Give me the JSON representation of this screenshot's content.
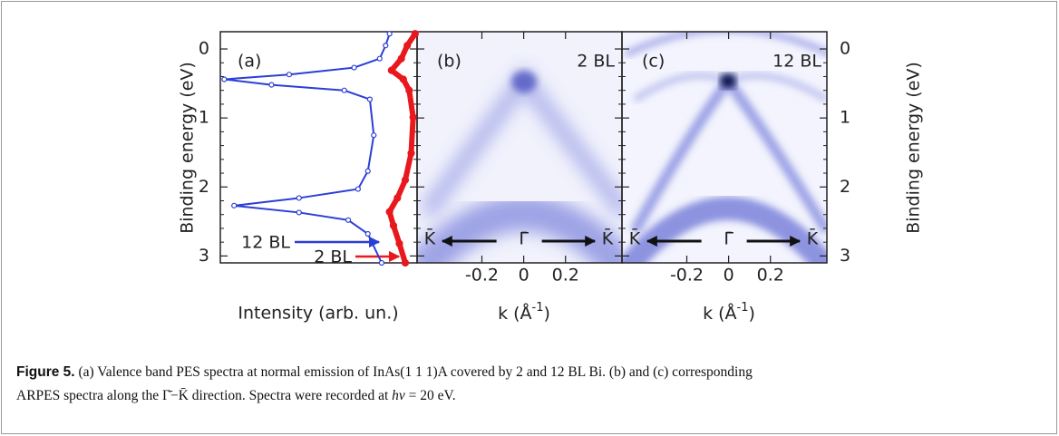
{
  "figure": {
    "y_label": "Binding energy (eV)",
    "ylim": [
      -0.25,
      3.1
    ],
    "yticks": [
      0,
      1,
      2,
      3
    ],
    "panel_a": {
      "label": "(a)",
      "x_label": "Intensity (arb. un.)",
      "series": [
        {
          "name": "12 BL",
          "color": "#2b3fd6",
          "energy": [
            -0.22,
            -0.05,
            0.14,
            0.27,
            0.37,
            0.44,
            0.52,
            0.6,
            0.73,
            1.25,
            1.77,
            2.03,
            2.16,
            2.27,
            2.37,
            2.48,
            2.68,
            3.1
          ],
          "intensity": [
            0.86,
            0.84,
            0.81,
            0.68,
            0.35,
            0.02,
            0.26,
            0.63,
            0.76,
            0.78,
            0.75,
            0.7,
            0.4,
            0.07,
            0.4,
            0.65,
            0.75,
            0.82
          ]
        },
        {
          "name": "2 BL",
          "color": "#e8181c",
          "energy": [
            -0.22,
            -0.05,
            0.14,
            0.31,
            0.44,
            0.6,
            0.99,
            1.51,
            1.9,
            2.16,
            2.36,
            2.56,
            2.82,
            3.1
          ],
          "intensity": [
            0.99,
            0.95,
            0.92,
            0.87,
            0.93,
            0.96,
            0.98,
            0.97,
            0.94,
            0.9,
            0.86,
            0.88,
            0.91,
            0.94
          ]
        }
      ]
    },
    "k_label": "k (Å",
    "k_label_sup": "-1",
    "k_label_end": ")",
    "klim": [
      -0.51,
      0.47
    ],
    "kticks": [
      -0.2,
      0,
      0.2
    ],
    "panel_b": {
      "label": "(b)",
      "thickness": "2 BL"
    },
    "panel_c": {
      "label": "(c)",
      "thickness": "12 BL"
    },
    "direction_labels": [
      "K̄",
      "Γ̄",
      "K̄"
    ]
  },
  "caption": {
    "label": "Figure 5.",
    "text_1": " (a) Valence band PES spectra at normal emission of InAs(1 1 1)A covered by 2 and 12 BL Bi. (b) and (c) corresponding",
    "text_2": "ARPES spectra along the ",
    "direction": "Γ̄−K̄",
    "text_3": " direction. Spectra were recorded at ",
    "photon": "hν",
    "photon_value": " = 20 eV",
    "end": "."
  }
}
